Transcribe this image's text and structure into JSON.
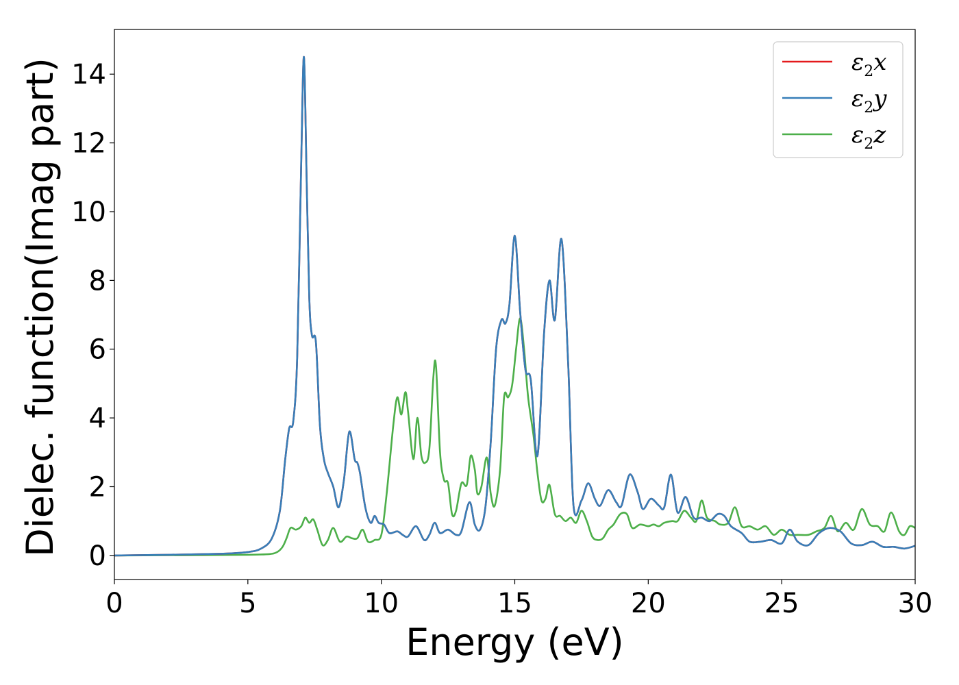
{
  "chart_data": {
    "type": "line",
    "xlabel": "Energy (eV)",
    "ylabel": "Dielec. function(Imag part)",
    "xlim": [
      0,
      30
    ],
    "ylim": [
      -0.7,
      15.3
    ],
    "xticks": [
      0,
      5,
      10,
      15,
      20,
      25,
      30
    ],
    "yticks": [
      0,
      2,
      4,
      6,
      8,
      10,
      12,
      14
    ],
    "grid": false,
    "legend_position": "top-right",
    "colors": {
      "x": "#e41a1c",
      "y": "#377eb8",
      "z": "#4daf4a"
    },
    "series": [
      {
        "name": "ε2x",
        "legend": {
          "base": "ε",
          "sub": "2",
          "var": "x"
        },
        "color": "#e41a1c",
        "x": [
          0,
          2,
          4,
          5,
          5.5,
          5.9,
          6.2,
          6.4,
          6.55,
          6.7,
          6.85,
          7.0,
          7.1,
          7.2,
          7.3,
          7.4,
          7.55,
          7.7,
          7.85,
          8.0,
          8.2,
          8.4,
          8.6,
          8.8,
          9.0,
          9.1,
          9.2,
          9.4,
          9.6,
          9.75,
          9.9,
          10.1,
          10.3,
          10.6,
          10.8,
          11.0,
          11.3,
          11.6,
          11.8,
          12.0,
          12.2,
          12.5,
          12.8,
          13.0,
          13.3,
          13.5,
          13.7,
          13.9,
          14.1,
          14.3,
          14.5,
          14.65,
          14.8,
          15.0,
          15.2,
          15.4,
          15.6,
          15.85,
          16.1,
          16.3,
          16.5,
          16.75,
          17.0,
          17.2,
          17.5,
          17.75,
          18.0,
          18.2,
          18.5,
          18.8,
          19.0,
          19.3,
          19.6,
          19.8,
          20.1,
          20.4,
          20.6,
          20.85,
          21.1,
          21.4,
          21.7,
          22.0,
          22.3,
          22.6,
          22.85,
          23.1,
          23.5,
          23.8,
          24.2,
          24.6,
          25.0,
          25.3,
          25.6,
          26.0,
          26.4,
          26.8,
          27.2,
          27.6,
          28.0,
          28.4,
          28.8,
          29.2,
          29.6,
          30.0
        ],
        "y": [
          0.0,
          0.02,
          0.05,
          0.1,
          0.2,
          0.5,
          1.3,
          2.8,
          3.7,
          3.9,
          5.8,
          11.5,
          14.5,
          11.0,
          7.5,
          6.4,
          6.2,
          3.8,
          2.8,
          2.4,
          2.0,
          1.4,
          2.2,
          3.6,
          2.8,
          2.7,
          2.4,
          1.4,
          0.95,
          1.15,
          0.95,
          0.9,
          0.65,
          0.7,
          0.6,
          0.55,
          0.85,
          0.45,
          0.6,
          0.95,
          0.65,
          0.75,
          0.6,
          0.7,
          1.55,
          0.9,
          0.75,
          1.4,
          3.3,
          6.0,
          6.85,
          6.75,
          7.3,
          9.3,
          7.1,
          5.4,
          5.1,
          2.9,
          6.5,
          8.0,
          6.85,
          9.2,
          5.6,
          1.45,
          1.6,
          2.1,
          1.65,
          1.45,
          1.9,
          1.55,
          1.45,
          2.35,
          1.85,
          1.35,
          1.65,
          1.45,
          1.4,
          2.35,
          1.25,
          1.7,
          1.1,
          1.1,
          1.0,
          1.2,
          1.15,
          0.85,
          0.65,
          0.4,
          0.4,
          0.45,
          0.35,
          0.75,
          0.4,
          0.3,
          0.65,
          0.8,
          0.7,
          0.35,
          0.3,
          0.4,
          0.25,
          0.25,
          0.2,
          0.28
        ]
      },
      {
        "name": "ε2y",
        "legend": {
          "base": "ε",
          "sub": "2",
          "var": "y"
        },
        "color": "#377eb8",
        "same_as": "ε2x"
      },
      {
        "name": "ε2z",
        "legend": {
          "base": "ε",
          "sub": "2",
          "var": "z"
        },
        "color": "#4daf4a",
        "x": [
          0,
          3,
          5,
          5.8,
          6.1,
          6.3,
          6.45,
          6.6,
          6.8,
          7.0,
          7.15,
          7.3,
          7.45,
          7.6,
          7.8,
          8.0,
          8.2,
          8.45,
          8.7,
          8.9,
          9.1,
          9.3,
          9.5,
          9.75,
          10.0,
          10.2,
          10.45,
          10.6,
          10.75,
          10.9,
          11.0,
          11.2,
          11.35,
          11.5,
          11.65,
          11.8,
          11.95,
          12.05,
          12.2,
          12.35,
          12.5,
          12.65,
          12.8,
          13.0,
          13.2,
          13.35,
          13.5,
          13.6,
          13.75,
          13.95,
          14.1,
          14.25,
          14.45,
          14.6,
          14.75,
          14.9,
          15.05,
          15.2,
          15.35,
          15.5,
          15.7,
          15.85,
          16.0,
          16.15,
          16.3,
          16.5,
          16.7,
          16.9,
          17.1,
          17.3,
          17.5,
          17.7,
          17.9,
          18.1,
          18.3,
          18.5,
          18.7,
          18.95,
          19.2,
          19.4,
          19.7,
          20.0,
          20.2,
          20.4,
          20.6,
          20.9,
          21.1,
          21.35,
          21.6,
          21.8,
          22.0,
          22.2,
          22.5,
          22.7,
          23.0,
          23.25,
          23.5,
          23.8,
          24.1,
          24.4,
          24.7,
          25.0,
          25.3,
          25.6,
          26.0,
          26.3,
          26.6,
          26.85,
          27.1,
          27.4,
          27.7,
          28.0,
          28.3,
          28.6,
          28.85,
          29.1,
          29.4,
          29.6,
          29.8,
          30.0
        ],
        "y": [
          0.0,
          0.01,
          0.02,
          0.04,
          0.1,
          0.25,
          0.5,
          0.8,
          0.75,
          0.85,
          1.1,
          0.95,
          1.05,
          0.75,
          0.3,
          0.45,
          0.8,
          0.4,
          0.55,
          0.5,
          0.5,
          0.75,
          0.4,
          0.45,
          0.6,
          1.8,
          3.8,
          4.6,
          4.1,
          4.75,
          4.2,
          2.8,
          4.0,
          2.9,
          2.7,
          3.1,
          5.2,
          5.5,
          3.0,
          2.2,
          2.1,
          1.2,
          1.3,
          2.1,
          2.05,
          2.9,
          2.5,
          1.8,
          2.0,
          2.85,
          1.8,
          1.45,
          2.5,
          4.6,
          4.6,
          4.95,
          6.0,
          6.9,
          6.0,
          4.6,
          3.5,
          2.4,
          1.6,
          1.65,
          2.05,
          1.2,
          1.15,
          1.0,
          1.1,
          0.95,
          1.3,
          1.0,
          0.55,
          0.45,
          0.5,
          0.75,
          0.9,
          1.2,
          1.2,
          0.8,
          0.9,
          0.85,
          0.9,
          0.85,
          0.95,
          1.0,
          1.0,
          1.3,
          1.1,
          1.0,
          1.6,
          1.1,
          1.0,
          0.9,
          0.95,
          1.4,
          0.85,
          0.85,
          0.75,
          0.85,
          0.6,
          0.75,
          0.6,
          0.6,
          0.6,
          0.7,
          0.8,
          1.15,
          0.7,
          0.95,
          0.75,
          1.35,
          0.9,
          0.85,
          0.7,
          1.25,
          0.7,
          0.6,
          0.85,
          0.8
        ]
      }
    ]
  }
}
